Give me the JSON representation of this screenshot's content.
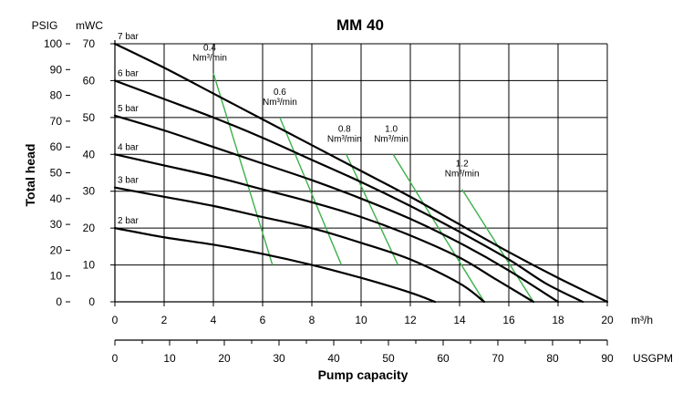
{
  "chart_data": {
    "type": "line",
    "title": "MM 40",
    "xlabel": "Pump capacity",
    "ylabel": "Total head",
    "x_unit": "m³/h",
    "x2_unit": "USGPM",
    "y_unit": "mWC",
    "y2_unit": "PSIG",
    "xlim": [
      0,
      20
    ],
    "ylim": [
      0,
      70
    ],
    "x2lim": [
      0,
      90
    ],
    "y2lim": [
      0,
      100
    ],
    "x_ticks": [
      "0",
      "2",
      "4",
      "6",
      "8",
      "10",
      "12",
      "14",
      "16",
      "18",
      "20"
    ],
    "y_ticks": [
      "0",
      "10",
      "20",
      "30",
      "40",
      "50",
      "60",
      "70"
    ],
    "y2_ticks": [
      "0",
      "10",
      "20",
      "30",
      "40",
      "50",
      "60",
      "70",
      "80",
      "90",
      "100"
    ],
    "x2_ticks": [
      "0",
      "10",
      "20",
      "30",
      "40",
      "50",
      "60",
      "70",
      "80",
      "90"
    ],
    "grid": true,
    "pressure_curves": [
      {
        "name": "7 bar",
        "points": [
          [
            0,
            70
          ],
          [
            2,
            63.5
          ],
          [
            4,
            56.5
          ],
          [
            6,
            49.5
          ],
          [
            8,
            42.5
          ],
          [
            10,
            35.5
          ],
          [
            12,
            28.5
          ],
          [
            14,
            21
          ],
          [
            16,
            13.5
          ],
          [
            18,
            6.5
          ],
          [
            20,
            0
          ]
        ]
      },
      {
        "name": "6 bar",
        "points": [
          [
            0,
            60
          ],
          [
            2,
            55
          ],
          [
            4,
            50
          ],
          [
            6,
            44.5
          ],
          [
            8,
            38.5
          ],
          [
            10,
            32.5
          ],
          [
            12,
            26
          ],
          [
            14,
            19
          ],
          [
            16,
            11.5
          ],
          [
            17.5,
            5
          ],
          [
            19,
            0
          ]
        ]
      },
      {
        "name": "5 bar",
        "points": [
          [
            0,
            50.5
          ],
          [
            2,
            46.5
          ],
          [
            4,
            42
          ],
          [
            6,
            37.5
          ],
          [
            8,
            33
          ],
          [
            10,
            28
          ],
          [
            12,
            22.5
          ],
          [
            14,
            16
          ],
          [
            16,
            8.5
          ],
          [
            18,
            0
          ]
        ]
      },
      {
        "name": "4 bar",
        "points": [
          [
            0,
            40
          ],
          [
            2,
            37
          ],
          [
            4,
            34
          ],
          [
            6,
            30.5
          ],
          [
            8,
            27
          ],
          [
            10,
            23
          ],
          [
            12,
            18
          ],
          [
            14,
            12
          ],
          [
            15.5,
            6
          ],
          [
            17,
            0
          ]
        ]
      },
      {
        "name": "3 bar",
        "points": [
          [
            0,
            31
          ],
          [
            2,
            28.5
          ],
          [
            4,
            26
          ],
          [
            6,
            23
          ],
          [
            8,
            20
          ],
          [
            10,
            16
          ],
          [
            12,
            11.5
          ],
          [
            14,
            5
          ],
          [
            15,
            0
          ]
        ]
      },
      {
        "name": "2 bar",
        "points": [
          [
            0,
            20
          ],
          [
            2,
            17.5
          ],
          [
            4,
            15.5
          ],
          [
            6,
            13
          ],
          [
            8,
            10
          ],
          [
            10,
            6.5
          ],
          [
            12,
            2.5
          ],
          [
            13,
            0
          ]
        ]
      }
    ],
    "flow_lines": [
      {
        "name": "0.4 Nm³/min",
        "points": [
          [
            4,
            62
          ],
          [
            6.4,
            10
          ]
        ]
      },
      {
        "name": "0.6 Nm³/min",
        "points": [
          [
            6.7,
            50
          ],
          [
            9.2,
            10
          ]
        ]
      },
      {
        "name": "0.8 Nm³/min",
        "points": [
          [
            9.4,
            40
          ],
          [
            11.5,
            10
          ]
        ]
      },
      {
        "name": "1.0 Nm³/min",
        "points": [
          [
            11.3,
            40
          ],
          [
            15,
            0
          ]
        ]
      },
      {
        "name": "1.2 Nm³/min",
        "points": [
          [
            14.1,
            30.5
          ],
          [
            17,
            0
          ]
        ]
      }
    ],
    "colors": {
      "pressure_curve": "#000000",
      "flow_line": "#3cb04a",
      "title": "#1f3d8c",
      "grid": "#000000"
    }
  }
}
